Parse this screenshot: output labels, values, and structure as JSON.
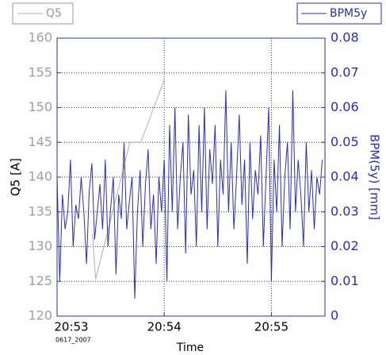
{
  "chart_data": {
    "type": "line",
    "x_label": "Time",
    "x_sublabel": "0617_2007",
    "y_label": "Q5 [A]",
    "y2_label": "BPM(5y) [mm]",
    "xlim": [
      1253,
      1255.5
    ],
    "xticks": [
      {
        "value": 1253,
        "label": "20:53"
      },
      {
        "value": 1254,
        "label": "20:54"
      },
      {
        "value": 1255,
        "label": "20:55"
      }
    ],
    "ylim": [
      120,
      160
    ],
    "yticks": [
      120,
      125,
      130,
      135,
      140,
      145,
      150,
      155,
      160
    ],
    "y2lim": [
      0,
      0.08
    ],
    "y2ticks": [
      0,
      0.01,
      0.02,
      0.03,
      0.04,
      0.05,
      0.06,
      0.07,
      0.08
    ],
    "grid": true,
    "series": [
      {
        "name": "Q5",
        "color": "#b0b0b0",
        "axis": "y",
        "x": [
          1253.33,
          1253.36,
          1253.6,
          1253.68,
          1253.78,
          1253.83,
          1254.0
        ],
        "values": [
          131.8,
          125.3,
          140,
          145,
          145,
          147,
          154
        ]
      },
      {
        "name": "BPM5y",
        "color": "#2a2ad0",
        "axis": "y2",
        "x": [
          1253,
          1253.025,
          1253.05,
          1253.075,
          1253.1,
          1253.125,
          1253.15,
          1253.175,
          1253.2,
          1253.225,
          1253.25,
          1253.275,
          1253.3,
          1253.325,
          1253.35,
          1253.375,
          1253.4,
          1253.425,
          1253.45,
          1253.475,
          1253.5,
          1253.525,
          1253.55,
          1253.575,
          1253.6,
          1253.625,
          1253.65,
          1253.675,
          1253.7,
          1253.725,
          1253.75,
          1253.775,
          1253.8,
          1253.825,
          1253.85,
          1253.875,
          1253.9,
          1253.925,
          1253.95,
          1253.975,
          1254,
          1254.025,
          1254.05,
          1254.075,
          1254.1,
          1254.125,
          1254.15,
          1254.175,
          1254.2,
          1254.225,
          1254.25,
          1254.275,
          1254.3,
          1254.325,
          1254.35,
          1254.375,
          1254.4,
          1254.425,
          1254.45,
          1254.475,
          1254.5,
          1254.525,
          1254.55,
          1254.575,
          1254.6,
          1254.625,
          1254.65,
          1254.675,
          1254.7,
          1254.725,
          1254.75,
          1254.775,
          1254.8,
          1254.825,
          1254.85,
          1254.875,
          1254.9,
          1254.925,
          1254.95,
          1254.975,
          1255,
          1255.025,
          1255.05,
          1255.075,
          1255.1,
          1255.125,
          1255.15,
          1255.175,
          1255.2,
          1255.225,
          1255.25,
          1255.275,
          1255.3,
          1255.325,
          1255.35,
          1255.375,
          1255.4,
          1255.425,
          1255.45,
          1255.475
        ],
        "values": [
          0.04,
          0.01,
          0.035,
          0.025,
          0.03,
          0.045,
          0.02,
          0.032,
          0.028,
          0.04,
          0.03,
          0.015,
          0.036,
          0.044,
          0.022,
          0.03,
          0.038,
          0.025,
          0.045,
          0.02,
          0.031,
          0.04,
          0.012,
          0.035,
          0.028,
          0.05,
          0.025,
          0.033,
          0.04,
          0.005,
          0.03,
          0.042,
          0.02,
          0.038,
          0.048,
          0.025,
          0.035,
          0.015,
          0.04,
          0.03,
          0.045,
          0.01,
          0.055,
          0.03,
          0.06,
          0.025,
          0.04,
          0.05,
          0.018,
          0.058,
          0.035,
          0.042,
          0.02,
          0.055,
          0.03,
          0.06,
          0.025,
          0.048,
          0.038,
          0.055,
          0.02,
          0.045,
          0.035,
          0.065,
          0.03,
          0.05,
          0.025,
          0.04,
          0.058,
          0.032,
          0.045,
          0.015,
          0.05,
          0.028,
          0.042,
          0.035,
          0.052,
          0.02,
          0.04,
          0.06,
          0.01,
          0.045,
          0.03,
          0.055,
          0.02,
          0.04,
          0.05,
          0.025,
          0.065,
          0.03,
          0.045,
          0.035,
          0.02,
          0.05,
          0.03,
          0.042,
          0.025,
          0.04,
          0.035,
          0.045
        ]
      }
    ]
  }
}
